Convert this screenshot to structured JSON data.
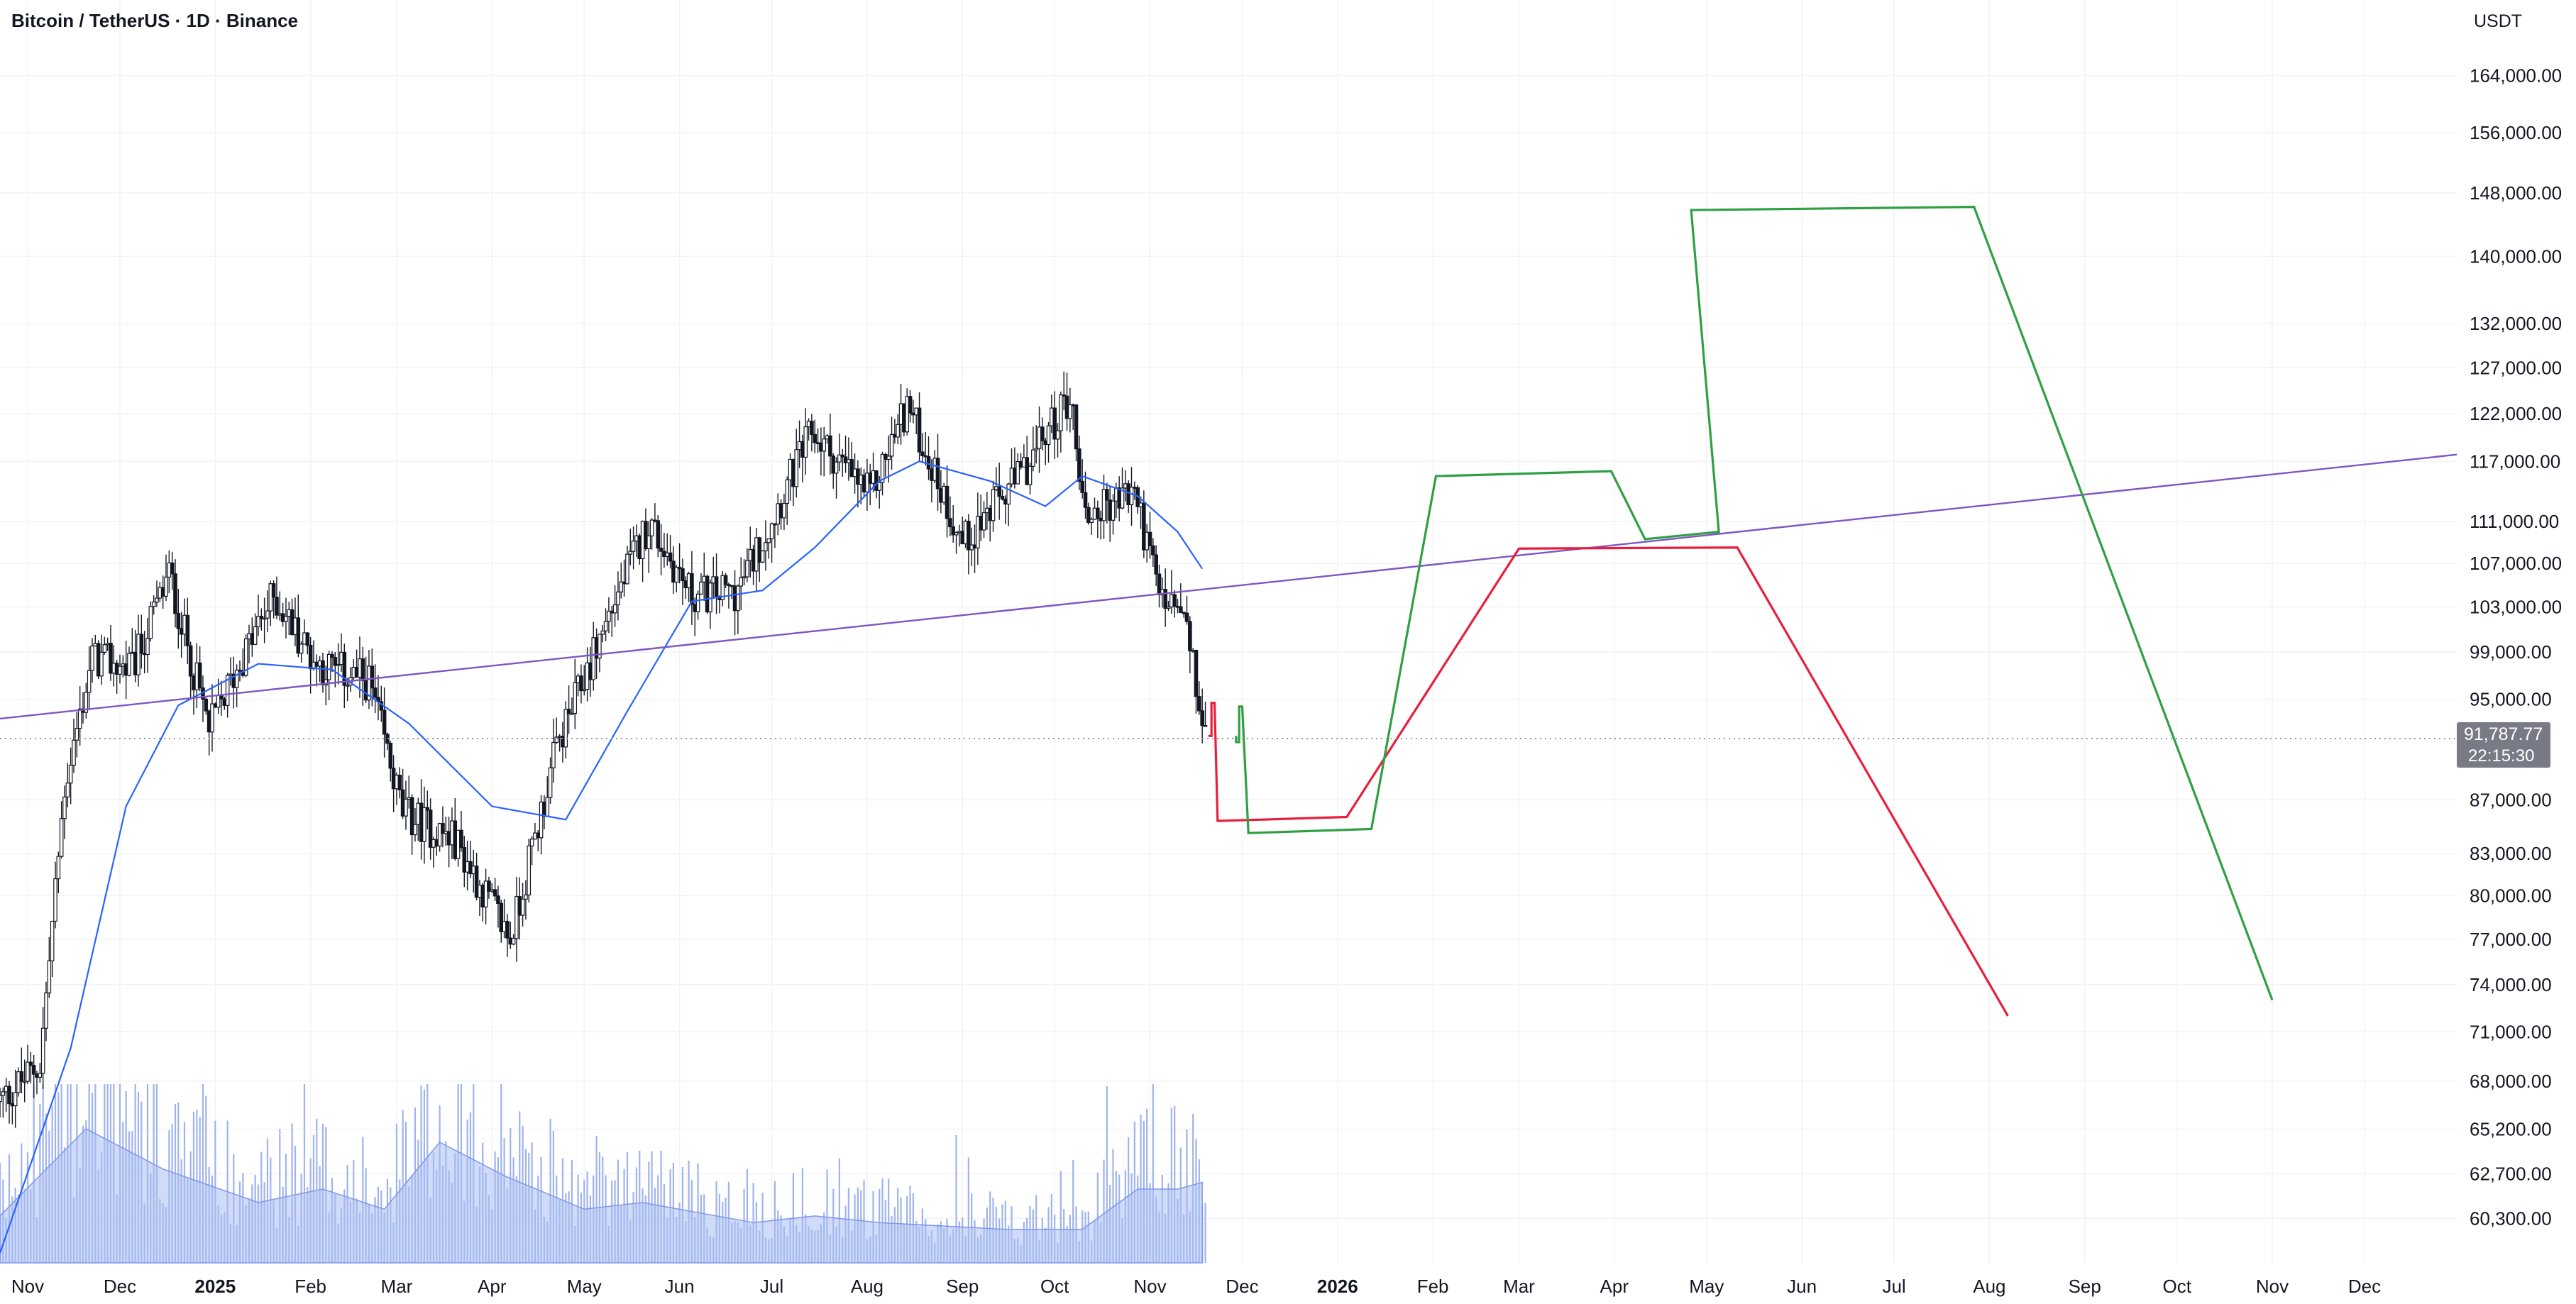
{
  "header": {
    "title": "Bitcoin / TetherUS · 1D · Binance",
    "currency": "USDT"
  },
  "last_price": {
    "price": "91,787.77",
    "countdown": "22:15:30"
  },
  "colors": {
    "candle": "#131722",
    "ma": "#2962ff",
    "trendline": "#7e57c2",
    "red_path": "#e91e3c",
    "green_path": "#2ea043",
    "volume": "#9fb3ee",
    "volume_ma": "#a9bdf2"
  },
  "chart_data": {
    "type": "candlestick",
    "symbol": "Bitcoin / TetherUS",
    "interval": "1D",
    "exchange": "Binance",
    "y_scale": "log",
    "ylim": [
      58000,
      172000
    ],
    "y_ticks": [
      164000,
      156000,
      148000,
      140000,
      132000,
      127000,
      122000,
      117000,
      111000,
      107000,
      103000,
      99000,
      95000,
      87000,
      83000,
      80000,
      77000,
      74000,
      71000,
      68000,
      65200,
      62700,
      60300
    ],
    "y_tick_labels": [
      "164,000.00",
      "156,000.00",
      "148,000.00",
      "140,000.00",
      "132,000.00",
      "127,000.00",
      "122,000.00",
      "117,000.00",
      "111,000.00",
      "107,000.00",
      "103,000.00",
      "99,000.00",
      "95,000.00",
      "87,000.00",
      "83,000.00",
      "80,000.00",
      "77,000.00",
      "74,000.00",
      "71,000.00",
      "68,000.00",
      "65,200.00",
      "62,700.00",
      "60,300.00"
    ],
    "x_range": [
      "2024-10-23",
      "2026-12-31"
    ],
    "x_ticks": [
      {
        "date": "2024-11-01",
        "label": "Nov",
        "bold": false
      },
      {
        "date": "2024-12-01",
        "label": "Dec",
        "bold": false
      },
      {
        "date": "2025-01-01",
        "label": "2025",
        "bold": true
      },
      {
        "date": "2025-02-01",
        "label": "Feb",
        "bold": false
      },
      {
        "date": "2025-03-01",
        "label": "Mar",
        "bold": false
      },
      {
        "date": "2025-04-01",
        "label": "Apr",
        "bold": false
      },
      {
        "date": "2025-05-01",
        "label": "May",
        "bold": false
      },
      {
        "date": "2025-06-01",
        "label": "Jun",
        "bold": false
      },
      {
        "date": "2025-07-01",
        "label": "Jul",
        "bold": false
      },
      {
        "date": "2025-08-01",
        "label": "Aug",
        "bold": false
      },
      {
        "date": "2025-09-01",
        "label": "Sep",
        "bold": false
      },
      {
        "date": "2025-10-01",
        "label": "Oct",
        "bold": false
      },
      {
        "date": "2025-11-01",
        "label": "Nov",
        "bold": false
      },
      {
        "date": "2025-12-01",
        "label": "Dec",
        "bold": false
      },
      {
        "date": "2026-01-01",
        "label": "2026",
        "bold": true
      },
      {
        "date": "2026-02-01",
        "label": "Feb",
        "bold": false
      },
      {
        "date": "2026-03-01",
        "label": "Mar",
        "bold": false
      },
      {
        "date": "2026-04-01",
        "label": "Apr",
        "bold": false
      },
      {
        "date": "2026-05-01",
        "label": "May",
        "bold": false
      },
      {
        "date": "2026-06-01",
        "label": "Jun",
        "bold": false
      },
      {
        "date": "2026-07-01",
        "label": "Jul",
        "bold": false
      },
      {
        "date": "2026-08-01",
        "label": "Aug",
        "bold": false
      },
      {
        "date": "2026-09-01",
        "label": "Sep",
        "bold": false
      },
      {
        "date": "2026-10-01",
        "label": "Oct",
        "bold": false
      },
      {
        "date": "2026-11-01",
        "label": "Nov",
        "bold": false
      },
      {
        "date": "2026-12-01",
        "label": "Dec",
        "bold": false
      }
    ],
    "price_closes_approx": [
      {
        "date": "2024-10-23",
        "close": 66800
      },
      {
        "date": "2024-11-05",
        "close": 69000
      },
      {
        "date": "2024-11-13",
        "close": 88000
      },
      {
        "date": "2024-11-22",
        "close": 98500
      },
      {
        "date": "2024-12-05",
        "close": 97500
      },
      {
        "date": "2024-12-17",
        "close": 106000
      },
      {
        "date": "2024-12-30",
        "close": 92500
      },
      {
        "date": "2025-01-07",
        "close": 97000
      },
      {
        "date": "2025-01-20",
        "close": 104000
      },
      {
        "date": "2025-02-03",
        "close": 98000
      },
      {
        "date": "2025-02-20",
        "close": 96500
      },
      {
        "date": "2025-03-03",
        "close": 86000
      },
      {
        "date": "2025-03-20",
        "close": 84000
      },
      {
        "date": "2025-04-07",
        "close": 77000
      },
      {
        "date": "2025-04-22",
        "close": 91000
      },
      {
        "date": "2025-05-10",
        "close": 103000
      },
      {
        "date": "2025-05-22",
        "close": 111000
      },
      {
        "date": "2025-06-05",
        "close": 104000
      },
      {
        "date": "2025-06-20",
        "close": 104500
      },
      {
        "date": "2025-07-14",
        "close": 120000
      },
      {
        "date": "2025-08-02",
        "close": 113500
      },
      {
        "date": "2025-08-14",
        "close": 123000
      },
      {
        "date": "2025-09-01",
        "close": 109000
      },
      {
        "date": "2025-09-20",
        "close": 115500
      },
      {
        "date": "2025-10-06",
        "close": 124000
      },
      {
        "date": "2025-10-11",
        "close": 111500
      },
      {
        "date": "2025-10-27",
        "close": 114000
      },
      {
        "date": "2025-11-04",
        "close": 104000
      },
      {
        "date": "2025-11-12",
        "close": 102000
      },
      {
        "date": "2025-11-19",
        "close": 91787.77
      }
    ],
    "moving_average_approx": [
      {
        "date": "2024-10-23",
        "value": 58500
      },
      {
        "date": "2024-11-15",
        "value": 70000
      },
      {
        "date": "2024-12-03",
        "value": 86500
      },
      {
        "date": "2024-12-20",
        "value": 94500
      },
      {
        "date": "2025-01-15",
        "value": 98000
      },
      {
        "date": "2025-02-08",
        "value": 97500
      },
      {
        "date": "2025-03-05",
        "value": 93000
      },
      {
        "date": "2025-04-01",
        "value": 86500
      },
      {
        "date": "2025-04-25",
        "value": 85500
      },
      {
        "date": "2025-05-15",
        "value": 94000
      },
      {
        "date": "2025-06-05",
        "value": 103500
      },
      {
        "date": "2025-06-28",
        "value": 104500
      },
      {
        "date": "2025-07-15",
        "value": 108500
      },
      {
        "date": "2025-08-05",
        "value": 115000
      },
      {
        "date": "2025-08-18",
        "value": 117000
      },
      {
        "date": "2025-09-10",
        "value": 115000
      },
      {
        "date": "2025-09-28",
        "value": 112500
      },
      {
        "date": "2025-10-10",
        "value": 115500
      },
      {
        "date": "2025-10-28",
        "value": 113500
      },
      {
        "date": "2025-11-10",
        "value": 110000
      },
      {
        "date": "2025-11-18",
        "value": 106500
      }
    ],
    "volume_ma_approx": [
      {
        "date": "2024-10-23",
        "value": 0.35
      },
      {
        "date": "2024-11-20",
        "value": 1.0
      },
      {
        "date": "2024-12-15",
        "value": 0.7
      },
      {
        "date": "2025-01-15",
        "value": 0.45
      },
      {
        "date": "2025-02-05",
        "value": 0.55
      },
      {
        "date": "2025-02-25",
        "value": 0.4
      },
      {
        "date": "2025-03-15",
        "value": 0.9
      },
      {
        "date": "2025-04-05",
        "value": 0.65
      },
      {
        "date": "2025-05-01",
        "value": 0.4
      },
      {
        "date": "2025-05-20",
        "value": 0.45
      },
      {
        "date": "2025-06-25",
        "value": 0.3
      },
      {
        "date": "2025-07-15",
        "value": 0.35
      },
      {
        "date": "2025-08-05",
        "value": 0.3
      },
      {
        "date": "2025-09-15",
        "value": 0.25
      },
      {
        "date": "2025-10-10",
        "value": 0.25
      },
      {
        "date": "2025-10-28",
        "value": 0.55
      },
      {
        "date": "2025-11-10",
        "value": 0.55
      },
      {
        "date": "2025-11-18",
        "value": 0.6
      }
    ],
    "trendline": [
      {
        "date": "2024-10-23",
        "price": 93400
      },
      {
        "date": "2026-12-31",
        "price": 117700
      }
    ],
    "red_projection": [
      {
        "date": "2025-11-20",
        "price": 92000
      },
      {
        "date": "2025-11-21",
        "price": 92000
      },
      {
        "date": "2025-11-21",
        "price": 94700
      },
      {
        "date": "2025-11-22",
        "price": 94700
      },
      {
        "date": "2025-11-23",
        "price": 85400
      },
      {
        "date": "2026-01-04",
        "price": 85700
      },
      {
        "date": "2026-03-01",
        "price": 108400
      },
      {
        "date": "2026-05-11",
        "price": 108500
      },
      {
        "date": "2026-08-07",
        "price": 72000
      }
    ],
    "green_projection": [
      {
        "date": "2025-11-29",
        "price": 92000
      },
      {
        "date": "2025-11-29",
        "price": 91500
      },
      {
        "date": "2025-11-30",
        "price": 91500
      },
      {
        "date": "2025-11-30",
        "price": 94400
      },
      {
        "date": "2025-12-01",
        "price": 94400
      },
      {
        "date": "2025-12-03",
        "price": 84500
      },
      {
        "date": "2026-01-12",
        "price": 84800
      },
      {
        "date": "2026-02-02",
        "price": 115500
      },
      {
        "date": "2026-03-31",
        "price": 116000
      },
      {
        "date": "2026-04-11",
        "price": 109300
      },
      {
        "date": "2026-05-05",
        "price": 110000
      },
      {
        "date": "2026-04-26",
        "price": 145800
      },
      {
        "date": "2026-07-27",
        "price": 146200
      },
      {
        "date": "2026-11-01",
        "price": 73000
      }
    ],
    "last_price_line": 91787.77
  }
}
